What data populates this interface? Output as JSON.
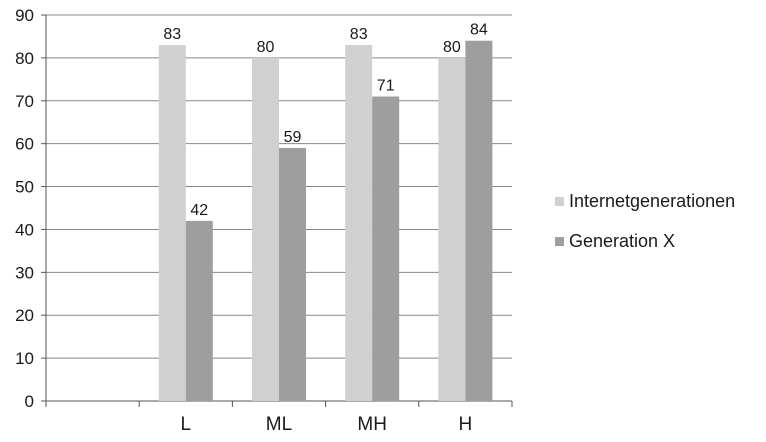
{
  "chart_data": {
    "type": "bar",
    "categories": [
      "",
      "L",
      "ML",
      "MH",
      "H"
    ],
    "series": [
      {
        "name": "Internetgenerationen",
        "values": [
          null,
          83,
          80,
          83,
          80
        ],
        "color": "#d0d0d0"
      },
      {
        "name": "Generation X",
        "values": [
          null,
          42,
          59,
          71,
          84
        ],
        "color": "#9e9e9e"
      }
    ],
    "ylim": [
      0,
      90
    ],
    "yticks": [
      0,
      10,
      20,
      30,
      40,
      50,
      60,
      70,
      80,
      90
    ],
    "grid": true,
    "legend_position": "right",
    "axis_color": "#555555",
    "grid_color": "#888888"
  }
}
